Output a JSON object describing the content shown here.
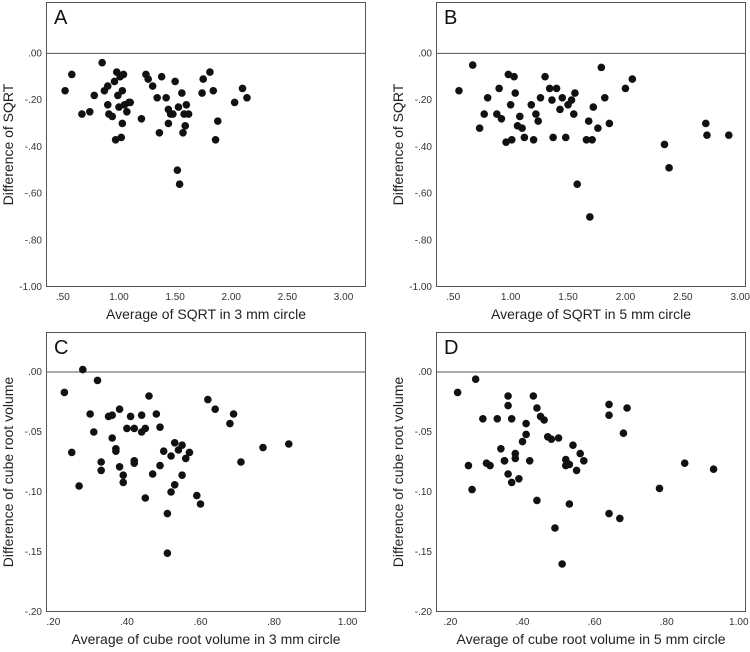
{
  "chart_data": [
    {
      "panel": "A",
      "type": "scatter",
      "xlabel": "Average of SQRT in 3 mm circle",
      "ylabel": "Difference of SQRT",
      "xlim": [
        0.35,
        3.2
      ],
      "ylim": [
        -1.0,
        0.1
      ],
      "xticks": [
        0.5,
        1.0,
        1.5,
        2.0,
        2.5,
        3.0
      ],
      "xtick_labels": [
        ".50",
        "1.00",
        "1.50",
        "2.00",
        "2.50",
        "3.00"
      ],
      "yticks": [
        0,
        -0.2,
        -0.4,
        -0.6,
        -0.8,
        -1.0
      ],
      "ytick_labels": [
        ".00",
        "-.20",
        "-.40",
        "-.60",
        "-.80",
        "-1.00"
      ],
      "reference_line": 0,
      "points": [
        [
          0.52,
          -0.16
        ],
        [
          0.58,
          -0.09
        ],
        [
          0.67,
          -0.26
        ],
        [
          0.74,
          -0.25
        ],
        [
          0.78,
          -0.18
        ],
        [
          0.85,
          -0.04
        ],
        [
          0.87,
          -0.16
        ],
        [
          0.9,
          -0.14
        ],
        [
          0.9,
          -0.22
        ],
        [
          0.91,
          -0.26
        ],
        [
          0.94,
          -0.27
        ],
        [
          0.96,
          -0.12
        ],
        [
          0.97,
          -0.37
        ],
        [
          0.98,
          -0.08
        ],
        [
          0.99,
          -0.18
        ],
        [
          1.0,
          -0.23
        ],
        [
          1.01,
          -0.1
        ],
        [
          1.02,
          -0.36
        ],
        [
          1.03,
          -0.16
        ],
        [
          1.03,
          -0.3
        ],
        [
          1.04,
          -0.09
        ],
        [
          1.05,
          -0.22
        ],
        [
          1.07,
          -0.25
        ],
        [
          1.09,
          -0.21
        ],
        [
          1.1,
          -0.21
        ],
        [
          1.2,
          -0.28
        ],
        [
          1.24,
          -0.09
        ],
        [
          1.26,
          -0.11
        ],
        [
          1.3,
          -0.14
        ],
        [
          1.34,
          -0.19
        ],
        [
          1.36,
          -0.34
        ],
        [
          1.38,
          -0.1
        ],
        [
          1.42,
          -0.19
        ],
        [
          1.44,
          -0.24
        ],
        [
          1.44,
          -0.3
        ],
        [
          1.46,
          -0.26
        ],
        [
          1.48,
          -0.26
        ],
        [
          1.5,
          -0.12
        ],
        [
          1.52,
          -0.5
        ],
        [
          1.53,
          -0.23
        ],
        [
          1.54,
          -0.56
        ],
        [
          1.56,
          -0.17
        ],
        [
          1.57,
          -0.34
        ],
        [
          1.58,
          -0.26
        ],
        [
          1.59,
          -0.31
        ],
        [
          1.6,
          -0.22
        ],
        [
          1.62,
          -0.26
        ],
        [
          1.74,
          -0.17
        ],
        [
          1.75,
          -0.11
        ],
        [
          1.81,
          -0.08
        ],
        [
          1.84,
          -0.16
        ],
        [
          1.86,
          -0.37
        ],
        [
          1.88,
          -0.29
        ],
        [
          2.03,
          -0.21
        ],
        [
          2.1,
          -0.15
        ],
        [
          2.14,
          -0.19
        ]
      ]
    },
    {
      "panel": "B",
      "type": "scatter",
      "xlabel": "Average of SQRT in 5 mm circle",
      "ylabel": "Difference of SQRT",
      "xlim": [
        0.35,
        3.05
      ],
      "ylim": [
        -1.0,
        0.1
      ],
      "xticks": [
        0.5,
        1.0,
        1.5,
        2.0,
        2.5,
        3.0
      ],
      "xtick_labels": [
        ".50",
        "1.00",
        "1.50",
        "2.00",
        "2.50",
        "3.00"
      ],
      "yticks": [
        0,
        -0.2,
        -0.4,
        -0.6,
        -0.8,
        -1.0
      ],
      "ytick_labels": [
        ".00",
        "-.20",
        "-.40",
        "-.60",
        "-.80",
        "-1.00"
      ],
      "reference_line": 0,
      "points": [
        [
          0.55,
          -0.16
        ],
        [
          0.67,
          -0.05
        ],
        [
          0.73,
          -0.32
        ],
        [
          0.77,
          -0.26
        ],
        [
          0.8,
          -0.19
        ],
        [
          0.88,
          -0.26
        ],
        [
          0.9,
          -0.15
        ],
        [
          0.92,
          -0.28
        ],
        [
          0.96,
          -0.38
        ],
        [
          0.98,
          -0.09
        ],
        [
          1.0,
          -0.22
        ],
        [
          1.01,
          -0.37
        ],
        [
          1.03,
          -0.1
        ],
        [
          1.04,
          -0.17
        ],
        [
          1.06,
          -0.31
        ],
        [
          1.08,
          -0.27
        ],
        [
          1.1,
          -0.32
        ],
        [
          1.12,
          -0.36
        ],
        [
          1.18,
          -0.22
        ],
        [
          1.2,
          -0.37
        ],
        [
          1.22,
          -0.26
        ],
        [
          1.24,
          -0.29
        ],
        [
          1.26,
          -0.19
        ],
        [
          1.3,
          -0.1
        ],
        [
          1.34,
          -0.15
        ],
        [
          1.36,
          -0.2
        ],
        [
          1.37,
          -0.36
        ],
        [
          1.4,
          -0.15
        ],
        [
          1.43,
          -0.24
        ],
        [
          1.45,
          -0.19
        ],
        [
          1.48,
          -0.36
        ],
        [
          1.5,
          -0.22
        ],
        [
          1.53,
          -0.2
        ],
        [
          1.55,
          -0.26
        ],
        [
          1.56,
          -0.17
        ],
        [
          1.58,
          -0.56
        ],
        [
          1.66,
          -0.37
        ],
        [
          1.68,
          -0.29
        ],
        [
          1.69,
          -0.7
        ],
        [
          1.71,
          -0.37
        ],
        [
          1.72,
          -0.23
        ],
        [
          1.76,
          -0.32
        ],
        [
          1.79,
          -0.06
        ],
        [
          1.82,
          -0.19
        ],
        [
          1.86,
          -0.3
        ],
        [
          2.0,
          -0.15
        ],
        [
          2.06,
          -0.11
        ],
        [
          2.34,
          -0.39
        ],
        [
          2.38,
          -0.49
        ],
        [
          2.7,
          -0.3
        ],
        [
          2.71,
          -0.35
        ],
        [
          2.9,
          -0.35
        ]
      ]
    },
    {
      "panel": "C",
      "type": "scatter",
      "xlabel": "Average of cube root volume in 3 mm circle",
      "ylabel": "Difference of cube root volume",
      "xlim": [
        0.18,
        1.05
      ],
      "ylim": [
        -0.2,
        0.01
      ],
      "xticks": [
        0.2,
        0.4,
        0.6,
        0.8,
        1.0
      ],
      "xtick_labels": [
        ".20",
        ".40",
        ".60",
        ".80",
        "1.00"
      ],
      "yticks": [
        0,
        -0.05,
        -0.1,
        -0.15,
        -0.2
      ],
      "ytick_labels": [
        ".00",
        "-.05",
        "-.10",
        "-.15",
        "-.20"
      ],
      "reference_line": 0,
      "points": [
        [
          0.23,
          -0.017
        ],
        [
          0.25,
          -0.067
        ],
        [
          0.27,
          -0.095
        ],
        [
          0.28,
          0.002
        ],
        [
          0.3,
          -0.035
        ],
        [
          0.31,
          -0.05
        ],
        [
          0.32,
          -0.007
        ],
        [
          0.33,
          -0.075
        ],
        [
          0.33,
          -0.082
        ],
        [
          0.35,
          -0.037
        ],
        [
          0.36,
          -0.055
        ],
        [
          0.36,
          -0.036
        ],
        [
          0.37,
          -0.066
        ],
        [
          0.37,
          -0.064
        ],
        [
          0.38,
          -0.031
        ],
        [
          0.38,
          -0.079
        ],
        [
          0.39,
          -0.092
        ],
        [
          0.39,
          -0.086
        ],
        [
          0.4,
          -0.047
        ],
        [
          0.41,
          -0.037
        ],
        [
          0.42,
          -0.074
        ],
        [
          0.42,
          -0.076
        ],
        [
          0.42,
          -0.047
        ],
        [
          0.44,
          -0.036
        ],
        [
          0.44,
          -0.05
        ],
        [
          0.45,
          -0.047
        ],
        [
          0.45,
          -0.105
        ],
        [
          0.46,
          -0.02
        ],
        [
          0.47,
          -0.085
        ],
        [
          0.48,
          -0.035
        ],
        [
          0.49,
          -0.046
        ],
        [
          0.49,
          -0.078
        ],
        [
          0.5,
          -0.066
        ],
        [
          0.51,
          -0.151
        ],
        [
          0.51,
          -0.118
        ],
        [
          0.52,
          -0.1
        ],
        [
          0.52,
          -0.07
        ],
        [
          0.53,
          -0.094
        ],
        [
          0.53,
          -0.059
        ],
        [
          0.54,
          -0.065
        ],
        [
          0.55,
          -0.086
        ],
        [
          0.55,
          -0.061
        ],
        [
          0.56,
          -0.072
        ],
        [
          0.57,
          -0.067
        ],
        [
          0.59,
          -0.103
        ],
        [
          0.6,
          -0.11
        ],
        [
          0.62,
          -0.023
        ],
        [
          0.64,
          -0.031
        ],
        [
          0.68,
          -0.043
        ],
        [
          0.69,
          -0.035
        ],
        [
          0.71,
          -0.075
        ],
        [
          0.77,
          -0.063
        ],
        [
          0.84,
          -0.06
        ]
      ]
    },
    {
      "panel": "D",
      "type": "scatter",
      "xlabel": "Average of cube root volume in 5 mm circle",
      "ylabel": "Difference of cube root volume",
      "xlim": [
        0.16,
        1.02
      ],
      "ylim": [
        -0.2,
        0.01
      ],
      "xticks": [
        0.2,
        0.4,
        0.6,
        0.8,
        1.0
      ],
      "xtick_labels": [
        ".20",
        ".40",
        ".60",
        ".80",
        "1.00"
      ],
      "yticks": [
        0,
        -0.05,
        -0.1,
        -0.15,
        -0.2
      ],
      "ytick_labels": [
        ".00",
        "-.05",
        "-.10",
        "-.15",
        "-.20"
      ],
      "reference_line": 0,
      "points": [
        [
          0.22,
          -0.017
        ],
        [
          0.25,
          -0.078
        ],
        [
          0.26,
          -0.098
        ],
        [
          0.27,
          -0.006
        ],
        [
          0.29,
          -0.039
        ],
        [
          0.3,
          -0.076
        ],
        [
          0.31,
          -0.078
        ],
        [
          0.33,
          -0.039
        ],
        [
          0.34,
          -0.064
        ],
        [
          0.35,
          -0.074
        ],
        [
          0.35,
          -0.074
        ],
        [
          0.36,
          -0.02
        ],
        [
          0.36,
          -0.028
        ],
        [
          0.36,
          -0.085
        ],
        [
          0.37,
          -0.092
        ],
        [
          0.37,
          -0.039
        ],
        [
          0.38,
          -0.068
        ],
        [
          0.38,
          -0.072
        ],
        [
          0.39,
          -0.089
        ],
        [
          0.4,
          -0.058
        ],
        [
          0.41,
          -0.052
        ],
        [
          0.41,
          -0.043
        ],
        [
          0.42,
          -0.074
        ],
        [
          0.43,
          -0.02
        ],
        [
          0.44,
          -0.03
        ],
        [
          0.44,
          -0.107
        ],
        [
          0.45,
          -0.037
        ],
        [
          0.46,
          -0.04
        ],
        [
          0.47,
          -0.054
        ],
        [
          0.48,
          -0.056
        ],
        [
          0.49,
          -0.13
        ],
        [
          0.5,
          -0.055
        ],
        [
          0.51,
          -0.16
        ],
        [
          0.52,
          -0.073
        ],
        [
          0.52,
          -0.078
        ],
        [
          0.53,
          -0.11
        ],
        [
          0.53,
          -0.077
        ],
        [
          0.54,
          -0.061
        ],
        [
          0.55,
          -0.082
        ],
        [
          0.56,
          -0.068
        ],
        [
          0.57,
          -0.074
        ],
        [
          0.64,
          -0.027
        ],
        [
          0.64,
          -0.036
        ],
        [
          0.64,
          -0.118
        ],
        [
          0.67,
          -0.122
        ],
        [
          0.68,
          -0.051
        ],
        [
          0.69,
          -0.03
        ],
        [
          0.78,
          -0.097
        ],
        [
          0.85,
          -0.076
        ],
        [
          0.93,
          -0.081
        ]
      ]
    }
  ]
}
